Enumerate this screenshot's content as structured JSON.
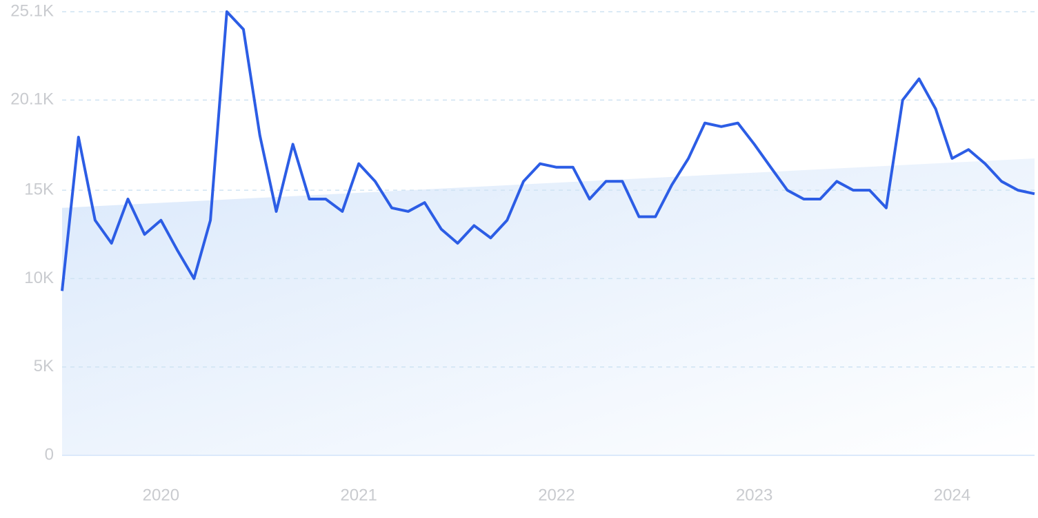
{
  "chart_data": {
    "type": "line",
    "x": [
      2019.5,
      2019.583,
      2019.667,
      2019.75,
      2019.833,
      2019.917,
      2020,
      2020.083,
      2020.167,
      2020.25,
      2020.333,
      2020.417,
      2020.5,
      2020.583,
      2020.667,
      2020.75,
      2020.833,
      2020.917,
      2021,
      2021.083,
      2021.167,
      2021.25,
      2021.333,
      2021.417,
      2021.5,
      2021.583,
      2021.667,
      2021.75,
      2021.833,
      2021.917,
      2022,
      2022.083,
      2022.167,
      2022.25,
      2022.333,
      2022.417,
      2022.5,
      2022.583,
      2022.667,
      2022.75,
      2022.833,
      2022.917,
      2023,
      2023.083,
      2023.167,
      2023.25,
      2023.333,
      2023.417,
      2023.5,
      2023.583,
      2023.667,
      2023.75,
      2023.833,
      2023.917,
      2024,
      2024.083,
      2024.167,
      2024.25,
      2024.333,
      2024.417
    ],
    "series": [
      {
        "color": "#2c5de5",
        "values": [
          9300,
          18000,
          13300,
          12000,
          14500,
          12500,
          13300,
          11600,
          10000,
          13300,
          25100,
          24100,
          18100,
          13800,
          17600,
          14500,
          14500,
          13800,
          16500,
          15500,
          14000,
          13800,
          14300,
          12800,
          12000,
          13000,
          12300,
          13300,
          15500,
          16500,
          16300,
          16300,
          14500,
          15500,
          15500,
          13500,
          13500,
          15300,
          16800,
          18800,
          18600,
          18800,
          17600,
          16300,
          15000,
          14500,
          14500,
          15500,
          15000,
          15000,
          14000,
          20100,
          21300,
          19600,
          16800,
          17300,
          16500,
          15500,
          15000,
          14800
        ]
      }
    ],
    "trend": {
      "x": [
        2019.5,
        2024.417
      ],
      "values": [
        14000,
        16800
      ],
      "color": "#dbe9fb"
    },
    "xlim": [
      2019.5,
      2024.417
    ],
    "xticks": [
      2020,
      2021,
      2022,
      2023,
      2024
    ],
    "ylim": [
      0,
      25100
    ],
    "yticks": [
      0,
      {
        "value": 5000,
        "label": "5K"
      },
      {
        "value": 10000,
        "label": "10K"
      },
      {
        "value": 15000,
        "label": "15K"
      },
      {
        "value": 20100,
        "label": "20.1K"
      },
      {
        "value": 25100,
        "label": "25.1K"
      }
    ],
    "grid": true
  }
}
